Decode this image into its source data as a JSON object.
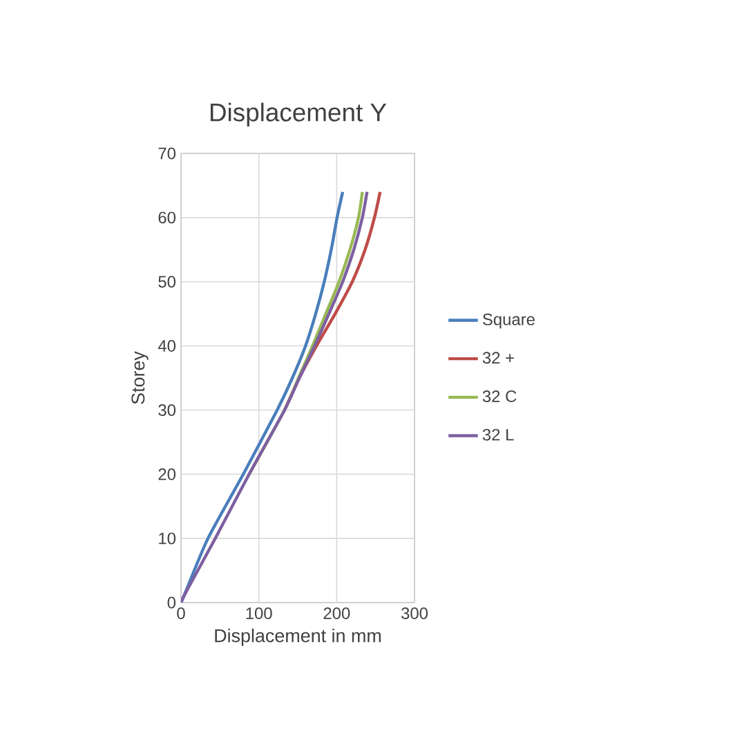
{
  "chart_data": {
    "type": "line",
    "title": "Displacement Y",
    "xlabel": "Displacement in mm",
    "ylabel": "Storey",
    "xlim": [
      0,
      300
    ],
    "xticks": [
      0,
      100,
      200,
      300
    ],
    "ylim": [
      0,
      70
    ],
    "yticks": [
      0,
      10,
      20,
      30,
      40,
      50,
      60,
      70
    ],
    "grid": true,
    "legend": "right",
    "marker": "none",
    "line_style": "solid",
    "series": [
      {
        "name": "Square",
        "color": "#4a7ebb",
        "x": [
          0,
          7,
          34.6,
          80,
          123.5,
          143,
          160,
          173,
          184,
          193,
          200.5,
          207.7
        ],
        "values": [
          0,
          2,
          10,
          20,
          30,
          35,
          40,
          45,
          50,
          55,
          60,
          64
        ]
      },
      {
        "name": "32 +",
        "color": "#be4b48",
        "x": [
          133,
          152,
          174,
          198,
          220,
          236.5,
          248.5,
          255.8
        ],
        "values": [
          30,
          35,
          40,
          45,
          50,
          55,
          60,
          64
        ]
      },
      {
        "name": "32 C",
        "color": "#98b954",
        "x": [
          87.5,
          133,
          151,
          169,
          186,
          203,
          217,
          228,
          233
        ],
        "values": [
          20,
          30,
          35,
          40,
          45,
          50,
          55,
          60,
          64
        ]
      },
      {
        "name": "32 L",
        "color": "#7d60a0",
        "x": [
          0,
          8,
          44,
          87.5,
          133,
          152,
          171.6,
          190,
          207.7,
          222,
          233,
          239
        ],
        "values": [
          0,
          2,
          10,
          20,
          30,
          35,
          40,
          45,
          50,
          55,
          60,
          64
        ]
      }
    ]
  }
}
